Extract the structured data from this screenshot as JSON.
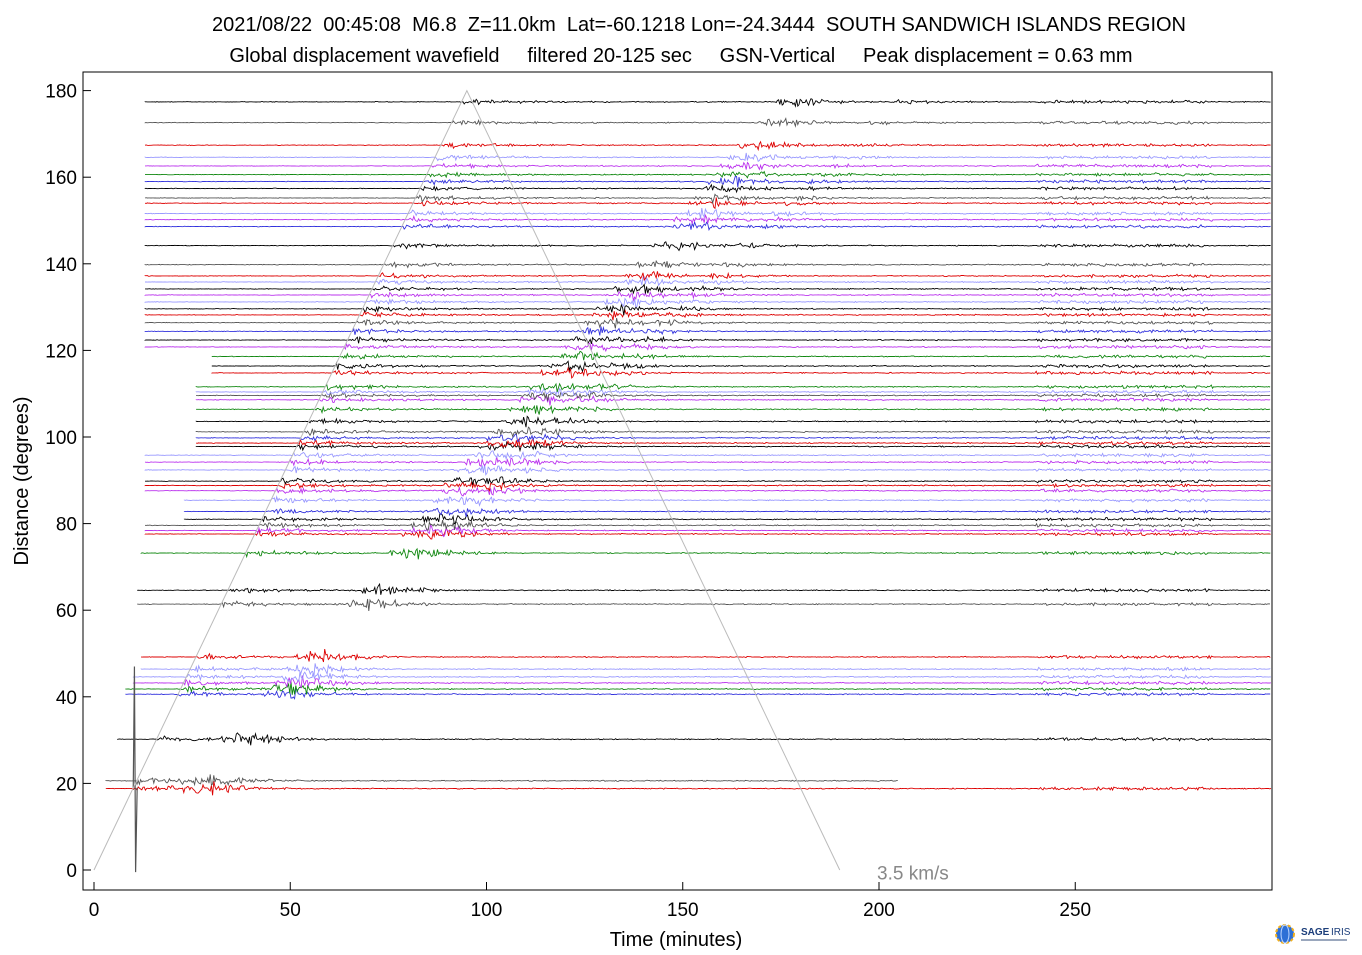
{
  "header": {
    "line1": "2021/08/22  00:45:08  M6.8  Z=11.0km  Lat=-60.1218 Lon=-24.3444  SOUTH SANDWICH ISLANDS REGION",
    "line2": "Global displacement wavefield     filtered 20-125 sec     GSN-Vertical     Peak displacement = 0.63 mm"
  },
  "logo": {
    "text": "SAGE",
    "subtext": "IRIS",
    "icon": "globe-icon"
  },
  "chart_data": {
    "type": "line",
    "title": "2021/08/22  00:45:08  M6.8  Z=11.0km  Lat=-60.1218 Lon=-24.3444  SOUTH SANDWICH ISLANDS REGION",
    "subtitle": "Global displacement wavefield     filtered 20-125 sec     GSN-Vertical     Peak displacement = 0.63 mm",
    "xlabel": "Time (minutes)",
    "ylabel": "Distance (degrees)",
    "xlim": [
      -3,
      300
    ],
    "ylim": [
      -5,
      185
    ],
    "xticks": [
      0,
      50,
      100,
      150,
      200,
      250
    ],
    "yticks": [
      0,
      20,
      40,
      60,
      80,
      100,
      120,
      140,
      160,
      180
    ],
    "grid": false,
    "annotation": {
      "text": "3.5 km/s",
      "x": 200,
      "y": -2
    },
    "reference_line": {
      "label": "3.5 km/s",
      "points": [
        [
          0,
          0
        ],
        [
          95,
          180
        ],
        [
          190,
          0
        ]
      ]
    },
    "traces": [
      {
        "distance": 18.8,
        "color": "#dd0000",
        "start": 3,
        "end": 300
      },
      {
        "distance": 20.6,
        "color": "#555555",
        "start": 3,
        "end": 205
      },
      {
        "distance": 30.2,
        "color": "#000000",
        "start": 6,
        "end": 300
      },
      {
        "distance": 40.6,
        "color": "#3333dd",
        "start": 8,
        "end": 300
      },
      {
        "distance": 41.8,
        "color": "#118811",
        "start": 8,
        "end": 300
      },
      {
        "distance": 43.2,
        "color": "#bb33ee",
        "start": 10,
        "end": 300
      },
      {
        "distance": 44.6,
        "color": "#9999ff",
        "start": 10,
        "end": 300
      },
      {
        "distance": 46.4,
        "color": "#9999ff",
        "start": 12,
        "end": 300
      },
      {
        "distance": 49.2,
        "color": "#dd0000",
        "start": 12,
        "end": 300
      },
      {
        "distance": 61.4,
        "color": "#555555",
        "start": 11,
        "end": 300
      },
      {
        "distance": 64.6,
        "color": "#000000",
        "start": 11,
        "end": 300
      },
      {
        "distance": 73.2,
        "color": "#118811",
        "start": 12,
        "end": 300
      },
      {
        "distance": 77.6,
        "color": "#dd0000",
        "start": 13,
        "end": 300
      },
      {
        "distance": 78.4,
        "color": "#bb33ee",
        "start": 13,
        "end": 300
      },
      {
        "distance": 79.6,
        "color": "#555555",
        "start": 13,
        "end": 300
      },
      {
        "distance": 81.0,
        "color": "#000000",
        "start": 23,
        "end": 300
      },
      {
        "distance": 82.8,
        "color": "#3333dd",
        "start": 23,
        "end": 300
      },
      {
        "distance": 85.4,
        "color": "#9999ff",
        "start": 23,
        "end": 300
      },
      {
        "distance": 87.6,
        "color": "#bb33ee",
        "start": 13,
        "end": 300
      },
      {
        "distance": 88.8,
        "color": "#dd0000",
        "start": 13,
        "end": 300
      },
      {
        "distance": 89.8,
        "color": "#000000",
        "start": 13,
        "end": 300
      },
      {
        "distance": 92.4,
        "color": "#9999ff",
        "start": 13,
        "end": 300
      },
      {
        "distance": 94.2,
        "color": "#bb33ee",
        "start": 13,
        "end": 300
      },
      {
        "distance": 95.8,
        "color": "#9999ff",
        "start": 13,
        "end": 300
      },
      {
        "distance": 97.8,
        "color": "#000000",
        "start": 26,
        "end": 300
      },
      {
        "distance": 98.6,
        "color": "#dd0000",
        "start": 26,
        "end": 300
      },
      {
        "distance": 99.8,
        "color": "#3333dd",
        "start": 26,
        "end": 300
      },
      {
        "distance": 101.2,
        "color": "#555555",
        "start": 26,
        "end": 300
      },
      {
        "distance": 103.6,
        "color": "#000000",
        "start": 26,
        "end": 300
      },
      {
        "distance": 106.4,
        "color": "#118811",
        "start": 26,
        "end": 300
      },
      {
        "distance": 108.6,
        "color": "#bb33ee",
        "start": 26,
        "end": 300
      },
      {
        "distance": 109.6,
        "color": "#555555",
        "start": 26,
        "end": 300
      },
      {
        "distance": 110.4,
        "color": "#9999ff",
        "start": 26,
        "end": 300
      },
      {
        "distance": 111.6,
        "color": "#118811",
        "start": 26,
        "end": 300
      },
      {
        "distance": 114.8,
        "color": "#dd0000",
        "start": 30,
        "end": 300
      },
      {
        "distance": 116.4,
        "color": "#000000",
        "start": 30,
        "end": 300
      },
      {
        "distance": 118.6,
        "color": "#118811",
        "start": 30,
        "end": 300
      },
      {
        "distance": 120.8,
        "color": "#bb33ee",
        "start": 13,
        "end": 300
      },
      {
        "distance": 122.4,
        "color": "#000000",
        "start": 13,
        "end": 300
      },
      {
        "distance": 124.4,
        "color": "#3333dd",
        "start": 13,
        "end": 300
      },
      {
        "distance": 126.4,
        "color": "#555555",
        "start": 13,
        "end": 300
      },
      {
        "distance": 128.2,
        "color": "#dd0000",
        "start": 13,
        "end": 300
      },
      {
        "distance": 129.6,
        "color": "#000000",
        "start": 13,
        "end": 300
      },
      {
        "distance": 131.2,
        "color": "#9999ff",
        "start": 13,
        "end": 300
      },
      {
        "distance": 132.8,
        "color": "#bb33ee",
        "start": 13,
        "end": 300
      },
      {
        "distance": 134.2,
        "color": "#000000",
        "start": 13,
        "end": 300
      },
      {
        "distance": 135.8,
        "color": "#9999ff",
        "start": 13,
        "end": 300
      },
      {
        "distance": 137.2,
        "color": "#dd0000",
        "start": 13,
        "end": 300
      },
      {
        "distance": 139.8,
        "color": "#555555",
        "start": 13,
        "end": 300
      },
      {
        "distance": 144.2,
        "color": "#000000",
        "start": 13,
        "end": 300
      },
      {
        "distance": 148.6,
        "color": "#3333dd",
        "start": 13,
        "end": 300
      },
      {
        "distance": 150.2,
        "color": "#bb33ee",
        "start": 13,
        "end": 300
      },
      {
        "distance": 151.6,
        "color": "#9999ff",
        "start": 13,
        "end": 300
      },
      {
        "distance": 154.0,
        "color": "#dd0000",
        "start": 13,
        "end": 300
      },
      {
        "distance": 155.2,
        "color": "#555555",
        "start": 13,
        "end": 300
      },
      {
        "distance": 157.4,
        "color": "#000000",
        "start": 13,
        "end": 300
      },
      {
        "distance": 159.0,
        "color": "#3333dd",
        "start": 13,
        "end": 300
      },
      {
        "distance": 160.6,
        "color": "#118811",
        "start": 13,
        "end": 300
      },
      {
        "distance": 162.6,
        "color": "#bb33ee",
        "start": 13,
        "end": 300
      },
      {
        "distance": 164.6,
        "color": "#9999ff",
        "start": 13,
        "end": 300
      },
      {
        "distance": 167.4,
        "color": "#dd0000",
        "start": 13,
        "end": 300
      },
      {
        "distance": 172.6,
        "color": "#555555",
        "start": 13,
        "end": 300
      },
      {
        "distance": 177.4,
        "color": "#000000",
        "start": 13,
        "end": 300
      }
    ]
  }
}
